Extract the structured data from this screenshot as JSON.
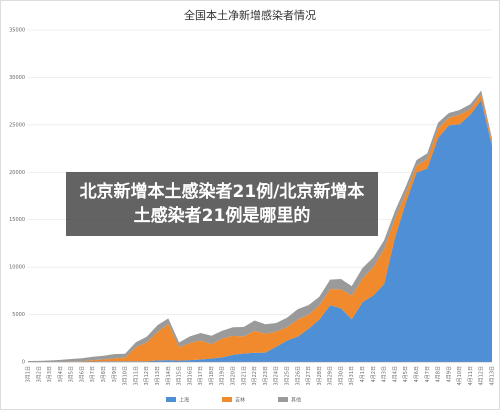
{
  "caption": "北京新增本土感染者21例/北京新增本土感染者21例是哪里的",
  "chart_data": {
    "type": "stacked-area",
    "title": "全国本土净新增感染者情况",
    "categories": [
      "3月1日",
      "3月2日",
      "3月3日",
      "3月4日",
      "3月5日",
      "3月6日",
      "3月7日",
      "3月8日",
      "3月9日",
      "3月10日",
      "3月11日",
      "3月12日",
      "3月13日",
      "3月14日",
      "3月15日",
      "3月16日",
      "3月17日",
      "3月18日",
      "3月19日",
      "3月20日",
      "3月21日",
      "3月22日",
      "3月23日",
      "3月24日",
      "3月25日",
      "3月26日",
      "3月27日",
      "3月28日",
      "3月29日",
      "3月30日",
      "3月31日",
      "4月1日",
      "4月2日",
      "4月3日",
      "4月4日",
      "4月5日",
      "4月6日",
      "4月7日",
      "4月8日",
      "4月9日",
      "4月10日",
      "4月11日",
      "4月12日",
      "4月13日"
    ],
    "series": [
      {
        "name": "上海",
        "color": "#4f8fd6",
        "values": [
          2,
          2,
          3,
          5,
          28,
          45,
          51,
          62,
          76,
          64,
          83,
          65,
          169,
          202,
          150,
          203,
          260,
          366,
          492,
          758,
          896,
          977,
          983,
          1609,
          2267,
          2676,
          3500,
          4477,
          5982,
          5653,
          4502,
          6311,
          7010,
          8226,
          13086,
          16766,
          19982,
          20398,
          23624,
          24944,
          25069,
          26087,
          27605,
          22765
        ]
      },
      {
        "name": "吉林",
        "color": "#f08a2c",
        "values": [
          0,
          0,
          2,
          15,
          38,
          50,
          150,
          200,
          300,
          400,
          1500,
          2000,
          3000,
          3800,
          1400,
          1800,
          2000,
          1500,
          2000,
          2000,
          1800,
          2300,
          2000,
          1600,
          1400,
          1800,
          1500,
          1500,
          1700,
          2000,
          2500,
          2500,
          3000,
          3700,
          2000,
          1000,
          700,
          1000,
          1000,
          800,
          1000,
          600,
          600,
          400
        ]
      },
      {
        "name": "其他",
        "color": "#9a9a9a",
        "values": [
          100,
          120,
          150,
          200,
          250,
          300,
          350,
          400,
          450,
          400,
          500,
          600,
          700,
          600,
          500,
          700,
          800,
          900,
          800,
          900,
          1000,
          1100,
          1000,
          900,
          1000,
          1100,
          1000,
          900,
          1000,
          1100,
          1000,
          1100,
          1000,
          900,
          800,
          700,
          600,
          600,
          600,
          500,
          500,
          500,
          400,
          400
        ]
      }
    ],
    "ylim": [
      0,
      35000
    ],
    "yticks": [
      0,
      5000,
      10000,
      15000,
      20000,
      25000,
      30000,
      35000
    ],
    "grid": true
  }
}
